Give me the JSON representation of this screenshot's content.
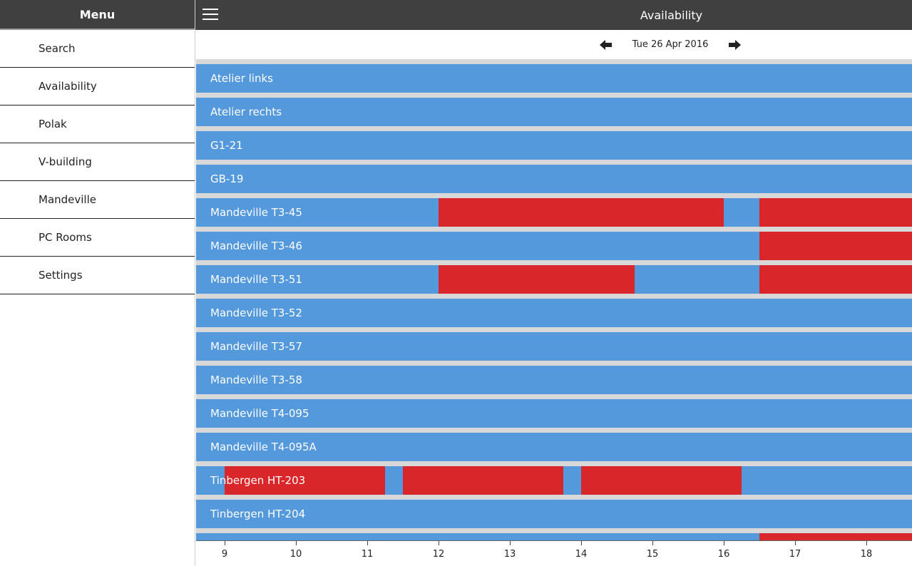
{
  "sidebar": {
    "title": "Menu",
    "items": [
      {
        "label": "Search",
        "name": "search"
      },
      {
        "label": "Availability",
        "name": "availability"
      },
      {
        "label": "Polak",
        "name": "polak"
      },
      {
        "label": "V-building",
        "name": "v-building"
      },
      {
        "label": "Mandeville",
        "name": "mandeville"
      },
      {
        "label": "PC Rooms",
        "name": "pc-rooms"
      },
      {
        "label": "Settings",
        "name": "settings"
      }
    ]
  },
  "header": {
    "title": "Availability",
    "menu_icon": "hamburger-icon"
  },
  "date_nav": {
    "date": "Tue 26 Apr 2016",
    "prev_icon": "arrow-left-icon",
    "next_icon": "arrow-right-icon"
  },
  "timeline": {
    "start_hour": 8.6,
    "end_hour": 18.64,
    "ticks": [
      9,
      10,
      11,
      12,
      13,
      14,
      15,
      16,
      17,
      18
    ]
  },
  "colors": {
    "free": "#5599dd",
    "busy": "#d9262a",
    "header": "#404040"
  },
  "rooms": [
    {
      "name": "Atelier links",
      "busy": []
    },
    {
      "name": "Atelier rechts",
      "busy": []
    },
    {
      "name": "G1-21",
      "busy": []
    },
    {
      "name": "GB-19",
      "busy": []
    },
    {
      "name": "Mandeville T3-45",
      "busy": [
        [
          12,
          16
        ],
        [
          16.5,
          18.64
        ]
      ]
    },
    {
      "name": "Mandeville T3-46",
      "busy": [
        [
          16.5,
          18.64
        ]
      ]
    },
    {
      "name": "Mandeville T3-51",
      "busy": [
        [
          12,
          14.75
        ],
        [
          16.5,
          18.64
        ]
      ]
    },
    {
      "name": "Mandeville T3-52",
      "busy": []
    },
    {
      "name": "Mandeville T3-57",
      "busy": []
    },
    {
      "name": "Mandeville T3-58",
      "busy": []
    },
    {
      "name": "Mandeville T4-095",
      "busy": []
    },
    {
      "name": "Mandeville T4-095A",
      "busy": []
    },
    {
      "name": "Tinbergen HT-203",
      "busy": [
        [
          9,
          11.25
        ],
        [
          11.5,
          13.75
        ],
        [
          14,
          16.25
        ]
      ]
    },
    {
      "name": "Tinbergen HT-204",
      "busy": []
    },
    {
      "name": "",
      "busy": [
        [
          16.5,
          18.64
        ]
      ]
    }
  ]
}
